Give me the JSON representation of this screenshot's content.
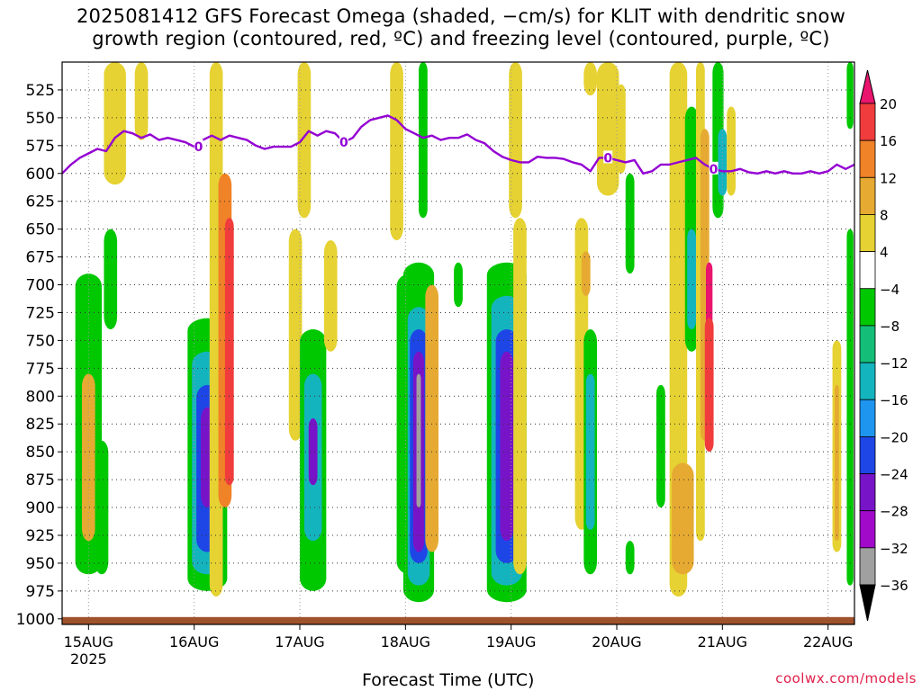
{
  "title": {
    "line1": "2025081412 GFS Forecast Omega (shaded, −cm/s) for KLIT with dendritic snow",
    "line2": "growth region (contoured, red, ºC) and freezing level (contoured, purple, ºC)"
  },
  "credit": "coolwx.com/models",
  "chart_data": {
    "type": "heatmap",
    "xlabel": "Forecast Time (UTC)",
    "ylabel": "",
    "x_tick_labels": [
      "15AUG",
      "16AUG",
      "17AUG",
      "18AUG",
      "19AUG",
      "20AUG",
      "21AUG",
      "22AUG"
    ],
    "x_year_label": "2025",
    "xlim_hours": [
      0,
      180
    ],
    "y_tick_labels": [
      525,
      550,
      575,
      600,
      625,
      650,
      675,
      700,
      725,
      750,
      775,
      800,
      825,
      850,
      875,
      900,
      925,
      950,
      975,
      1000
    ],
    "ylim_hPa": [
      500,
      1005
    ],
    "grid": true,
    "colorbar": {
      "labels": [
        20,
        16,
        12,
        8,
        4,
        -4,
        -8,
        -12,
        -16,
        -20,
        -24,
        -28,
        -32,
        -36
      ],
      "colors": [
        "#e8146e",
        "#f03c3c",
        "#f08228",
        "#e6aa32",
        "#e6d232",
        "#ffffff",
        "#00c800",
        "#14be78",
        "#14b4be",
        "#1e96f0",
        "#1e46e6",
        "#7814c8",
        "#a00ac8",
        "#a0a0a0",
        "#000000"
      ]
    },
    "omega_cells": [
      {
        "t": 6,
        "p1": 690,
        "p2": 960,
        "w": 6,
        "color": "#00c800"
      },
      {
        "t": 6,
        "p1": 780,
        "p2": 930,
        "w": 3,
        "color": "#e6aa32"
      },
      {
        "t": 9,
        "p1": 840,
        "p2": 960,
        "w": 3,
        "color": "#00c800"
      },
      {
        "t": 11,
        "p1": 650,
        "p2": 740,
        "w": 3,
        "color": "#00c800"
      },
      {
        "t": 12,
        "p1": 500,
        "p2": 610,
        "w": 5,
        "color": "#e6d232"
      },
      {
        "t": 18,
        "p1": 500,
        "p2": 570,
        "w": 3,
        "color": "#e6d232"
      },
      {
        "t": 33,
        "p1": 730,
        "p2": 975,
        "w": 9,
        "color": "#00c800"
      },
      {
        "t": 33,
        "p1": 760,
        "p2": 960,
        "w": 7,
        "color": "#14b4be"
      },
      {
        "t": 33,
        "p1": 790,
        "p2": 940,
        "w": 5,
        "color": "#1e46e6"
      },
      {
        "t": 33,
        "p1": 810,
        "p2": 900,
        "w": 3,
        "color": "#7814c8"
      },
      {
        "t": 35,
        "p1": 500,
        "p2": 980,
        "w": 3,
        "color": "#e6d232"
      },
      {
        "t": 37,
        "p1": 600,
        "p2": 900,
        "w": 3,
        "color": "#f08228"
      },
      {
        "t": 38,
        "p1": 640,
        "p2": 880,
        "w": 2,
        "color": "#f03c3c"
      },
      {
        "t": 53,
        "p1": 650,
        "p2": 840,
        "w": 3,
        "color": "#e6d232"
      },
      {
        "t": 55,
        "p1": 500,
        "p2": 640,
        "w": 3,
        "color": "#e6d232"
      },
      {
        "t": 57,
        "p1": 740,
        "p2": 975,
        "w": 6,
        "color": "#00c800"
      },
      {
        "t": 57,
        "p1": 780,
        "p2": 930,
        "w": 4,
        "color": "#14b4be"
      },
      {
        "t": 57,
        "p1": 820,
        "p2": 880,
        "w": 2,
        "color": "#7814c8"
      },
      {
        "t": 61,
        "p1": 660,
        "p2": 760,
        "w": 3,
        "color": "#e6d232"
      },
      {
        "t": 76,
        "p1": 500,
        "p2": 660,
        "w": 3,
        "color": "#e6d232"
      },
      {
        "t": 79,
        "p1": 690,
        "p2": 960,
        "w": 6,
        "color": "#00c800"
      },
      {
        "t": 81,
        "p1": 680,
        "p2": 985,
        "w": 7,
        "color": "#00c800"
      },
      {
        "t": 81,
        "p1": 720,
        "p2": 970,
        "w": 5,
        "color": "#14b4be"
      },
      {
        "t": 81,
        "p1": 740,
        "p2": 950,
        "w": 4,
        "color": "#1e46e6"
      },
      {
        "t": 81,
        "p1": 760,
        "p2": 940,
        "w": 2.5,
        "color": "#7814c8"
      },
      {
        "t": 81,
        "p1": 780,
        "p2": 900,
        "w": 1,
        "color": "#a0a0a0"
      },
      {
        "t": 82,
        "p1": 500,
        "p2": 640,
        "w": 2,
        "color": "#00c800"
      },
      {
        "t": 84,
        "p1": 700,
        "p2": 940,
        "w": 3,
        "color": "#e6aa32"
      },
      {
        "t": 90,
        "p1": 680,
        "p2": 720,
        "w": 2,
        "color": "#00c800"
      },
      {
        "t": 101,
        "p1": 680,
        "p2": 985,
        "w": 9,
        "color": "#00c800"
      },
      {
        "t": 101,
        "p1": 710,
        "p2": 970,
        "w": 7,
        "color": "#14b4be"
      },
      {
        "t": 101,
        "p1": 740,
        "p2": 950,
        "w": 5,
        "color": "#1e46e6"
      },
      {
        "t": 101,
        "p1": 760,
        "p2": 930,
        "w": 3,
        "color": "#7814c8"
      },
      {
        "t": 103,
        "p1": 500,
        "p2": 640,
        "w": 3,
        "color": "#e6d232"
      },
      {
        "t": 104,
        "p1": 640,
        "p2": 960,
        "w": 3,
        "color": "#e6d232"
      },
      {
        "t": 118,
        "p1": 640,
        "p2": 920,
        "w": 3,
        "color": "#e6d232"
      },
      {
        "t": 119,
        "p1": 670,
        "p2": 710,
        "w": 2,
        "color": "#e6aa32"
      },
      {
        "t": 120,
        "p1": 740,
        "p2": 960,
        "w": 3,
        "color": "#00c800"
      },
      {
        "t": 120,
        "p1": 780,
        "p2": 920,
        "w": 2,
        "color": "#14b4be"
      },
      {
        "t": 120,
        "p1": 500,
        "p2": 530,
        "w": 3,
        "color": "#e6d232"
      },
      {
        "t": 124,
        "p1": 500,
        "p2": 620,
        "w": 5,
        "color": "#e6d232"
      },
      {
        "t": 127,
        "p1": 520,
        "p2": 600,
        "w": 2,
        "color": "#e6d232"
      },
      {
        "t": 129,
        "p1": 600,
        "p2": 690,
        "w": 2,
        "color": "#00c800"
      },
      {
        "t": 129,
        "p1": 930,
        "p2": 960,
        "w": 2,
        "color": "#00c800"
      },
      {
        "t": 136,
        "p1": 790,
        "p2": 900,
        "w": 2,
        "color": "#00c800"
      },
      {
        "t": 140,
        "p1": 500,
        "p2": 980,
        "w": 4,
        "color": "#e6d232"
      },
      {
        "t": 141,
        "p1": 860,
        "p2": 960,
        "w": 5,
        "color": "#e6aa32"
      },
      {
        "t": 143,
        "p1": 540,
        "p2": 760,
        "w": 3,
        "color": "#00c800"
      },
      {
        "t": 143,
        "p1": 650,
        "p2": 740,
        "w": 2,
        "color": "#14b4be"
      },
      {
        "t": 145,
        "p1": 500,
        "p2": 930,
        "w": 2,
        "color": "#e6d232"
      },
      {
        "t": 146,
        "p1": 560,
        "p2": 840,
        "w": 2,
        "color": "#e6aa32"
      },
      {
        "t": 147,
        "p1": 680,
        "p2": 820,
        "w": 1.5,
        "color": "#e8146e"
      },
      {
        "t": 147,
        "p1": 730,
        "p2": 850,
        "w": 2,
        "color": "#f03c3c"
      },
      {
        "t": 149,
        "p1": 500,
        "p2": 640,
        "w": 2.5,
        "color": "#00c800"
      },
      {
        "t": 150,
        "p1": 560,
        "p2": 620,
        "w": 2,
        "color": "#14b4be"
      },
      {
        "t": 152,
        "p1": 540,
        "p2": 620,
        "w": 2,
        "color": "#e6d232"
      },
      {
        "t": 176,
        "p1": 750,
        "p2": 940,
        "w": 2,
        "color": "#e6d232"
      },
      {
        "t": 176,
        "p1": 790,
        "p2": 930,
        "w": 1,
        "color": "#e6aa32"
      },
      {
        "t": 179,
        "p1": 500,
        "p2": 560,
        "w": 1.5,
        "color": "#00c800"
      },
      {
        "t": 179,
        "p1": 650,
        "p2": 970,
        "w": 1.5,
        "color": "#00c800"
      }
    ],
    "freezing_level": {
      "label": "0",
      "label_hours": [
        31,
        64,
        124,
        148
      ],
      "x_hours": [
        0,
        2,
        4,
        6,
        8,
        10,
        12,
        14,
        16,
        18,
        20,
        22,
        24,
        26,
        28,
        30,
        32,
        34,
        36,
        38,
        40,
        42,
        44,
        46,
        48,
        50,
        52,
        54,
        56,
        58,
        60,
        62,
        64,
        66,
        68,
        70,
        72,
        74,
        76,
        78,
        80,
        82,
        84,
        86,
        88,
        90,
        92,
        94,
        96,
        98,
        100,
        102,
        104,
        106,
        108,
        110,
        112,
        114,
        116,
        118,
        120,
        122,
        124,
        126,
        128,
        130,
        132,
        134,
        136,
        138,
        140,
        142,
        144,
        146,
        148,
        150,
        152,
        154,
        156,
        158,
        160,
        162,
        164,
        166,
        168,
        170,
        172,
        174,
        176,
        178,
        180
      ],
      "p_hPa": [
        600,
        592,
        586,
        582,
        578,
        580,
        568,
        562,
        564,
        568,
        565,
        570,
        568,
        570,
        572,
        576,
        570,
        566,
        570,
        566,
        568,
        570,
        575,
        578,
        576,
        576,
        576,
        572,
        562,
        566,
        562,
        564,
        572,
        568,
        558,
        552,
        550,
        548,
        552,
        560,
        564,
        568,
        566,
        570,
        568,
        568,
        565,
        570,
        573,
        580,
        585,
        588,
        590,
        590,
        585,
        586,
        586,
        587,
        590,
        592,
        598,
        586,
        586,
        588,
        590,
        588,
        600,
        598,
        592,
        592,
        590,
        588,
        586,
        592,
        596,
        598,
        598,
        596,
        599,
        600,
        598,
        600,
        598,
        600,
        600,
        598,
        600,
        598,
        592,
        596,
        592
      ]
    }
  }
}
